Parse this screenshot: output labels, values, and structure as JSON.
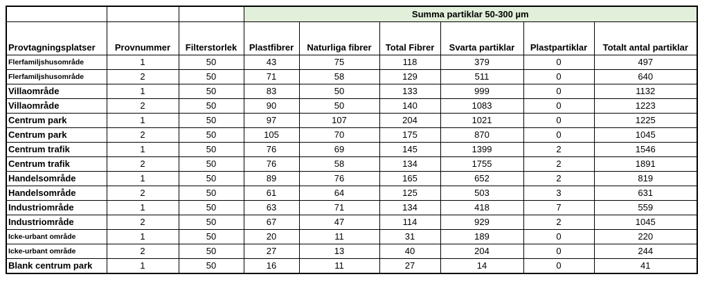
{
  "group_header": "Summa partiklar 50-300 µm",
  "columns": [
    "Provtagningsplatser",
    "Provnummer",
    "Filterstorlek",
    "Plastfibrer",
    "Naturliga fibrer",
    "Total Fibrer",
    "Svarta partiklar",
    "Plastpartiklar",
    "Totalt antal partiklar"
  ],
  "rows": [
    {
      "place": "Flerfamiljshusområde",
      "values": [
        "1",
        "50",
        "43",
        "75",
        "118",
        "379",
        "0",
        "497"
      ]
    },
    {
      "place": "Flerfamiljshusområde",
      "values": [
        "2",
        "50",
        "71",
        "58",
        "129",
        "511",
        "0",
        "640"
      ]
    },
    {
      "place": "Villaområde",
      "values": [
        "1",
        "50",
        "83",
        "50",
        "133",
        "999",
        "0",
        "1132"
      ]
    },
    {
      "place": "Villaområde",
      "values": [
        "2",
        "50",
        "90",
        "50",
        "140",
        "1083",
        "0",
        "1223"
      ]
    },
    {
      "place": "Centrum park",
      "values": [
        "1",
        "50",
        "97",
        "107",
        "204",
        "1021",
        "0",
        "1225"
      ]
    },
    {
      "place": "Centrum park",
      "values": [
        "2",
        "50",
        "105",
        "70",
        "175",
        "870",
        "0",
        "1045"
      ]
    },
    {
      "place": "Centrum trafik",
      "values": [
        "1",
        "50",
        "76",
        "69",
        "145",
        "1399",
        "2",
        "1546"
      ]
    },
    {
      "place": "Centrum trafik",
      "values": [
        "2",
        "50",
        "76",
        "58",
        "134",
        "1755",
        "2",
        "1891"
      ]
    },
    {
      "place": "Handelsområde",
      "values": [
        "1",
        "50",
        "89",
        "76",
        "165",
        "652",
        "2",
        "819"
      ]
    },
    {
      "place": "Handelsområde",
      "values": [
        "2",
        "50",
        "61",
        "64",
        "125",
        "503",
        "3",
        "631"
      ]
    },
    {
      "place": "Industriområde",
      "values": [
        "1",
        "50",
        "63",
        "71",
        "134",
        "418",
        "7",
        "559"
      ]
    },
    {
      "place": "Industriområde",
      "values": [
        "2",
        "50",
        "67",
        "47",
        "114",
        "929",
        "2",
        "1045"
      ]
    },
    {
      "place": "Icke-urbant område",
      "values": [
        "1",
        "50",
        "20",
        "11",
        "31",
        "189",
        "0",
        "220"
      ]
    },
    {
      "place": "Icke-urbant område",
      "values": [
        "2",
        "50",
        "27",
        "13",
        "40",
        "204",
        "0",
        "244"
      ]
    },
    {
      "place": "Blank centrum park",
      "values": [
        "1",
        "50",
        "16",
        "11",
        "27",
        "14",
        "0",
        "41"
      ]
    }
  ]
}
